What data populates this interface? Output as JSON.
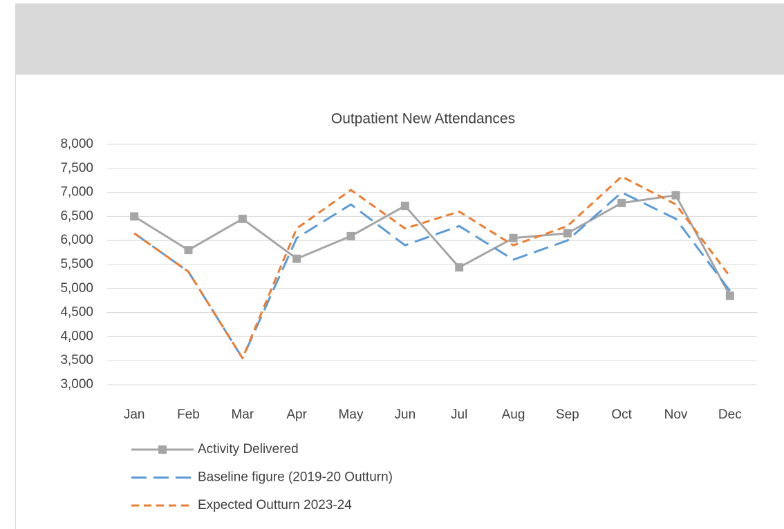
{
  "chart_data": {
    "type": "line",
    "title": "Outpatient New Attendances",
    "categories": [
      "Jan",
      "Feb",
      "Mar",
      "Apr",
      "May",
      "Jun",
      "Jul",
      "Aug",
      "Sep",
      "Oct",
      "Nov",
      "Dec"
    ],
    "series": [
      {
        "name": "Activity Delivered",
        "color": "#a5a5a5",
        "marker": "square",
        "values": [
          6500,
          5800,
          6450,
          5620,
          6090,
          6720,
          5440,
          6050,
          6150,
          6780,
          6940,
          4850
        ]
      },
      {
        "name": "Baseline figure (2019-20 Outturn)",
        "color": "#5b9bd5",
        "dash": "long",
        "values": [
          6150,
          5350,
          3550,
          6050,
          6750,
          5900,
          6300,
          5600,
          6000,
          7000,
          6450,
          4950
        ]
      },
      {
        "name": "Expected Outturn 2023-24",
        "color": "#ed7d31",
        "dash": "short",
        "values": [
          6150,
          5350,
          3550,
          6250,
          7050,
          6250,
          6600,
          5900,
          6300,
          7330,
          6750,
          5250
        ]
      }
    ],
    "ylim": [
      3000,
      8000
    ],
    "yticks": [
      {
        "value": 3000,
        "label": "3,000"
      },
      {
        "value": 3500,
        "label": "3,500"
      },
      {
        "value": 4000,
        "label": "4,000"
      },
      {
        "value": 4500,
        "label": "4,500"
      },
      {
        "value": 5000,
        "label": "5,000"
      },
      {
        "value": 5500,
        "label": "5,500"
      },
      {
        "value": 6000,
        "label": "6,000"
      },
      {
        "value": 6500,
        "label": "6,500"
      },
      {
        "value": 7000,
        "label": "7,000"
      },
      {
        "value": 7500,
        "label": "7,500"
      },
      {
        "value": 8000,
        "label": "8,000"
      }
    ],
    "grid": true
  }
}
